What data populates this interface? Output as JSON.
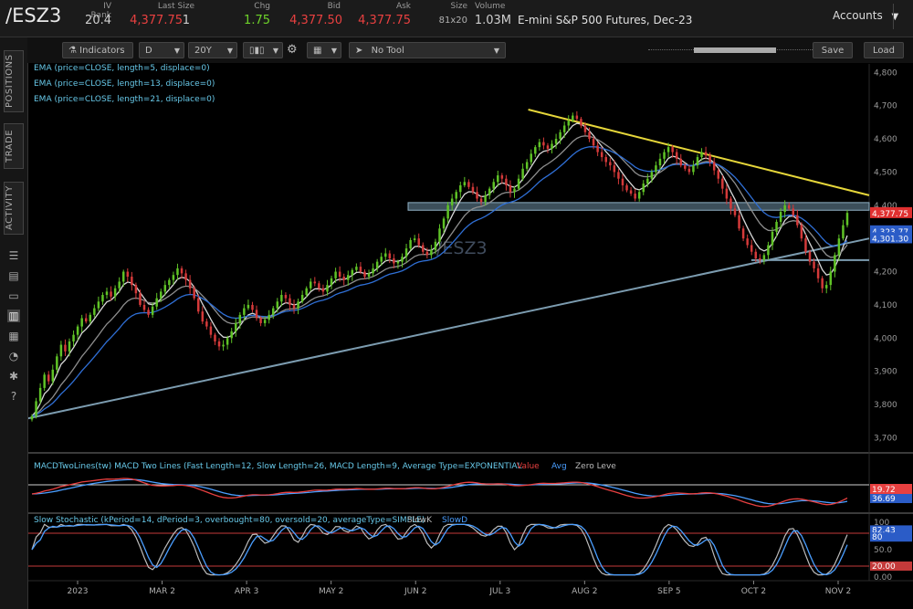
{
  "header": {
    "symbol": "/ESZ3",
    "fields": [
      {
        "label": "IV Rank",
        "value": "20.4",
        "color": "#cfcfcf"
      },
      {
        "label": "Last Size",
        "value": "4,377.75",
        "extra": "1",
        "color": "#e84040"
      },
      {
        "label": "Chg",
        "value": "1.75",
        "color": "#6ed32a"
      },
      {
        "label": "Bid",
        "value": "4,377.50",
        "color": "#e84040"
      },
      {
        "label": "Ask",
        "value": "4,377.75",
        "color": "#e84040"
      },
      {
        "label": "Size",
        "value": "81x20",
        "color": "#b0b0b0"
      },
      {
        "label": "Volume",
        "value": "1.03M",
        "color": "#cfcfcf"
      }
    ],
    "description": "E-mini S&P 500 Futures, Dec-23",
    "accounts_label": "Accounts"
  },
  "toolbar": {
    "indicators_label": "Indicators",
    "period": "D",
    "range": "20Y",
    "tool_label": "No Tool",
    "save_label": "Save",
    "load_label": "Load"
  },
  "sidebar": {
    "tabs": [
      "POSITIONS",
      "TRADE",
      "ACTIVITY"
    ]
  },
  "chart_data": [
    {
      "type": "candlestick",
      "watermark": "/ESZ3",
      "studies": [
        "EMA (price=CLOSE, length=5, displace=0)",
        "EMA (price=CLOSE, length=13, displace=0)",
        "EMA (price=CLOSE, length=21, displace=0)"
      ],
      "ylim": [
        3660,
        4820
      ],
      "y_ticks": [
        "4,800",
        "4,700",
        "4,600",
        "4,500",
        "4,400",
        "4,300",
        "4,200",
        "4,100",
        "4,000",
        "3,900",
        "3,800",
        "3,700"
      ],
      "x_ticks": [
        "2023",
        "MAR 2",
        "APR 3",
        "MAY 2",
        "JUN 2",
        "JUL 3",
        "AUG 2",
        "SEP 5",
        "OCT 2",
        "NOV 2"
      ],
      "price_labels": [
        {
          "text": "4,377.75",
          "price": 4377.75,
          "bg": "#e03030"
        },
        {
          "text": "4,323.77",
          "price": 4323,
          "bg": "#2b5cc7"
        },
        {
          "text": "4,301.30",
          "price": 4302,
          "bg": "#2b5cc7"
        }
      ],
      "trendlines": [
        {
          "name": "resistance",
          "from": [
            0.595,
            4688
          ],
          "to": [
            1.0,
            4430
          ],
          "color": "#e5d63a"
        },
        {
          "name": "support",
          "from": [
            0.0,
            3758
          ],
          "to": [
            1.0,
            4300
          ],
          "color": "#7c9cb0"
        }
      ],
      "zone": {
        "from": 4385,
        "to": 4408
      },
      "hline": {
        "price": 4235,
        "from": 0.86
      },
      "closes": [
        3765,
        3810,
        3850,
        3890,
        3870,
        3905,
        3945,
        3980,
        3960,
        3990,
        4010,
        4035,
        4060,
        4050,
        4070,
        4090,
        4110,
        4130,
        4140,
        4125,
        4150,
        4170,
        4200,
        4185,
        4160,
        4135,
        4100,
        4085,
        4070,
        4095,
        4120,
        4140,
        4160,
        4175,
        4190,
        4210,
        4195,
        4175,
        4150,
        4120,
        4080,
        4050,
        4035,
        4010,
        3990,
        3975,
        3980,
        4000,
        4020,
        4045,
        4070,
        4090,
        4100,
        4085,
        4060,
        4045,
        4055,
        4070,
        4090,
        4110,
        4130,
        4120,
        4100,
        4090,
        4110,
        4130,
        4150,
        4170,
        4165,
        4150,
        4140,
        4160,
        4180,
        4200,
        4185,
        4175,
        4190,
        4205,
        4215,
        4200,
        4185,
        4195,
        4210,
        4230,
        4245,
        4255,
        4240,
        4225,
        4230,
        4245,
        4270,
        4295,
        4300,
        4280,
        4260,
        4250,
        4265,
        4290,
        4330,
        4360,
        4400,
        4420,
        4440,
        4460,
        4470,
        4455,
        4440,
        4420,
        4410,
        4430,
        4450,
        4470,
        4490,
        4480,
        4460,
        4440,
        4450,
        4480,
        4510,
        4530,
        4555,
        4575,
        4590,
        4580,
        4570,
        4585,
        4600,
        4620,
        4640,
        4655,
        4670,
        4660,
        4640,
        4620,
        4600,
        4580,
        4560,
        4545,
        4530,
        4520,
        4500,
        4480,
        4460,
        4445,
        4435,
        4420,
        4440,
        4465,
        4480,
        4500,
        4520,
        4540,
        4560,
        4575,
        4560,
        4540,
        4520,
        4510,
        4500,
        4520,
        4545,
        4560,
        4550,
        4530,
        4505,
        4480,
        4450,
        4420,
        4390,
        4370,
        4330,
        4300,
        4280,
        4260,
        4240,
        4235,
        4250,
        4280,
        4320,
        4350,
        4380,
        4400,
        4390,
        4370,
        4340,
        4300,
        4260,
        4230,
        4210,
        4180,
        4150,
        4160,
        4200,
        4250,
        4300,
        4340,
        4377
      ],
      "macd": {
        "title": "MACDTwoLines(tw) MACD Two Lines (Fast Length=12, Slow Length=26, MACD Length=9, Average Type=EXPONENTIAL",
        "legend": [
          {
            "name": "Value",
            "color": "#e84040"
          },
          {
            "name": "Avg",
            "color": "#4a9eff"
          },
          {
            "name": "Zero Leve",
            "color": "#bbbbbb"
          }
        ],
        "value_label": "19.72",
        "avg_label": "36.69"
      },
      "stochastic": {
        "title": "Slow Stochastic (kPeriod=14, dPeriod=3, overbought=80, oversold=20, averageType=SIMPLE)",
        "legend": [
          {
            "name": "SlowK",
            "color": "#bbbbbb"
          },
          {
            "name": "SlowD",
            "color": "#4a9eff"
          }
        ],
        "y_ticks": [
          "100",
          "50.0",
          "0.00"
        ],
        "labels": [
          "82.43",
          "80",
          "20.00"
        ]
      }
    }
  ]
}
